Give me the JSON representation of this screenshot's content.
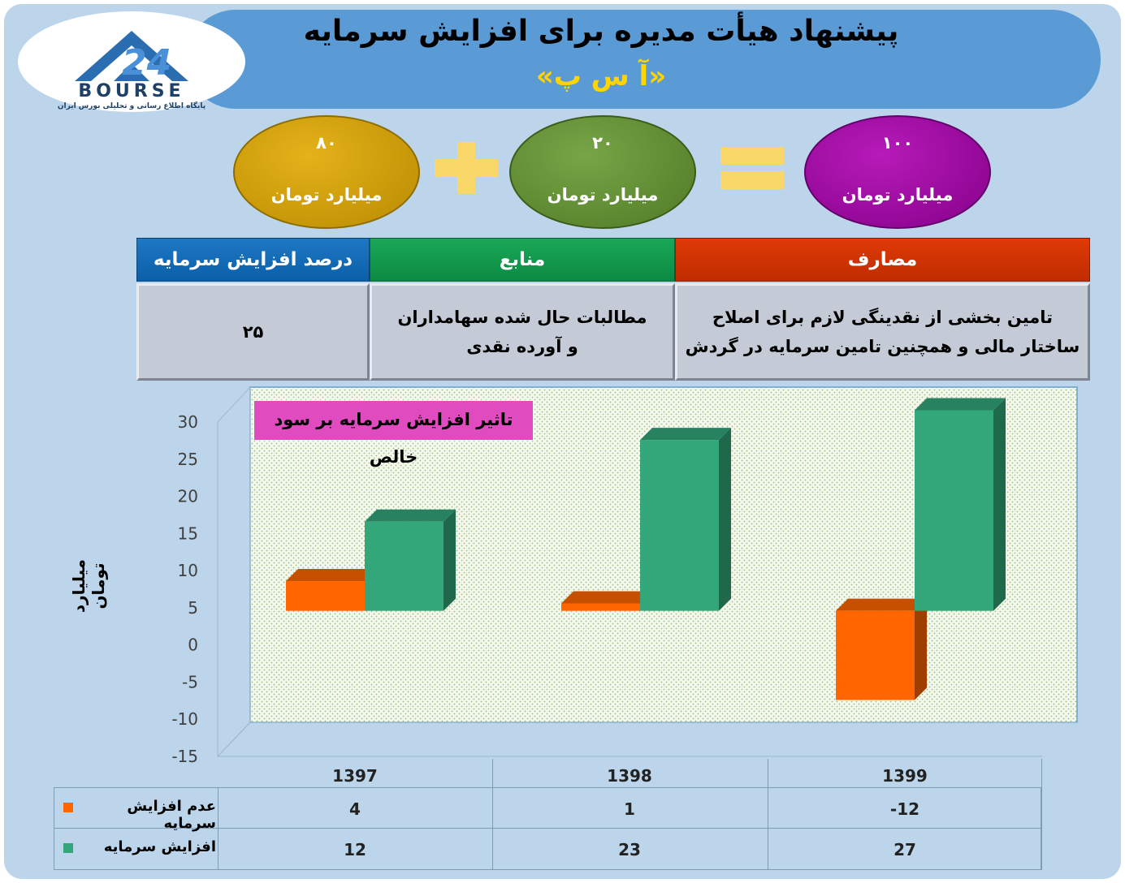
{
  "header": {
    "title": "پیشنهاد هیأت مدیره برای افزایش سرمایه",
    "subtitle": "«آ س پ»"
  },
  "logo": {
    "word": "BOURSE",
    "tagline": "پایگاه اطلاع رسانی و تحلیلی بورس ایران"
  },
  "equation": {
    "left": {
      "value": "۸۰",
      "unit": "میلیارد تومان",
      "color": "#c89a0a"
    },
    "middle": {
      "value": "۲۰",
      "unit": "میلیارد تومان",
      "color": "#5e8c30"
    },
    "right": {
      "value": "۱۰۰",
      "unit": "میلیارد تومان",
      "color": "#9a0aa0"
    },
    "plus_icon": "plus-icon",
    "equals_icon": "equals-icon",
    "symbol_color": "#f9d769"
  },
  "table": {
    "headers": {
      "percent": "درصد افزایش سرمایه",
      "sources": "منابع",
      "uses": "مصارف"
    },
    "values": {
      "percent": "۲۵",
      "sources": "مطالبات حال شده سهامداران و آورده نقدی",
      "uses": "تامین بخشی از نقدینگی لازم برای اصلاح ساختار مالی و همچنین تامین سرمایه در گردش"
    },
    "header_colors": {
      "percent": "#0f66b0",
      "sources": "#119a4c",
      "uses": "#cc3300"
    }
  },
  "chart_data": {
    "type": "bar",
    "title": "تاثیر افزایش سرمایه بر سود خالص",
    "ylabel": "میلیارد تومان",
    "xlabel": "",
    "categories": [
      "1397",
      "1398",
      "1399"
    ],
    "series": [
      {
        "name": "عدم افزایش سرمایه",
        "values": [
          4,
          1,
          -12
        ],
        "color": "#ff6600"
      },
      {
        "name": "افزایش سرمایه",
        "values": [
          12,
          23,
          27
        ],
        "color": "#33a77a"
      }
    ],
    "ylim": [
      -15,
      30
    ],
    "yticks": [
      30,
      25,
      20,
      15,
      10,
      5,
      0,
      -5,
      -10,
      -15
    ],
    "grid": false,
    "legend": "data-table-below"
  }
}
